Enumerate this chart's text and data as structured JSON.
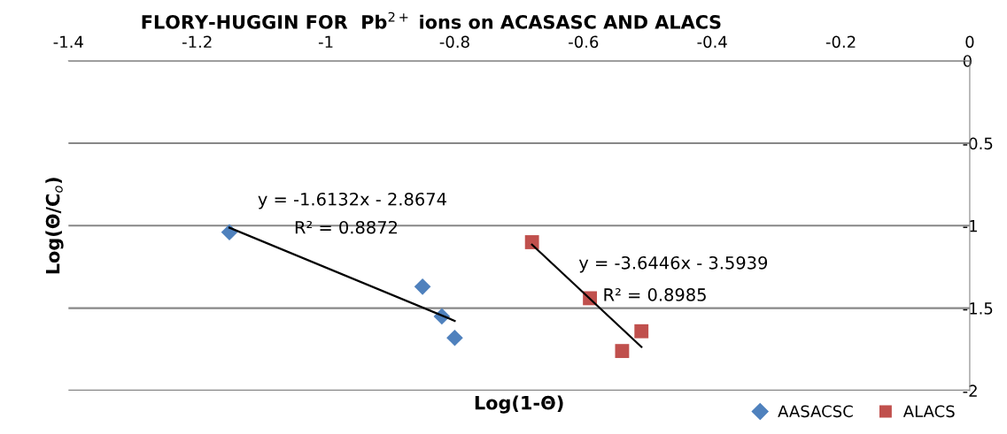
{
  "chart_data": {
    "type": "scatter",
    "title": "FLORY-HUGGIN FOR  Pb$^{2+}$ ions on ACASASC AND ALACS",
    "xlabel": "Log(1-Θ)",
    "ylabel": "Log(Θ/C$_{o}$)",
    "xlim": [
      -1.4,
      0
    ],
    "xticks": [
      -1.4,
      -1.2,
      -1,
      -0.8,
      -0.6,
      -0.4,
      -0.2,
      0
    ],
    "ylim": [
      -2,
      0
    ],
    "yticks": [
      -2,
      -1.5,
      -1,
      -0.5,
      0
    ],
    "grid": "y",
    "legend": "bottom right",
    "series": [
      {
        "name": "AASACSC",
        "color": "#4f81bd",
        "marker": "diamond",
        "x": [
          -1.15,
          -0.85,
          -0.82,
          -0.8
        ],
        "values": [
          -1.04,
          -1.37,
          -1.55,
          -1.68
        ]
      },
      {
        "name": "ALACS",
        "color": "#c0504d",
        "marker": "square",
        "x": [
          -0.68,
          -0.59,
          -0.54,
          -0.51
        ],
        "values": [
          -1.1,
          -1.44,
          -1.76,
          -1.64
        ]
      },
      {
        "type": "line",
        "color": "#000000",
        "marker": "none",
        "x": [
          -1.15,
          -0.8
        ],
        "values": [
          -1.012,
          -1.577
        ]
      },
      {
        "type": "line",
        "color": "#000000",
        "marker": "none",
        "x": [
          -0.68,
          -0.51
        ],
        "values": [
          -1.115,
          -1.735
        ]
      }
    ],
    "annotations": [
      "y = -1.6132x - 2.8674",
      "R² = 0.8872",
      "y = -3.6446x - 3.5939",
      "R² = 0.8985"
    ]
  }
}
